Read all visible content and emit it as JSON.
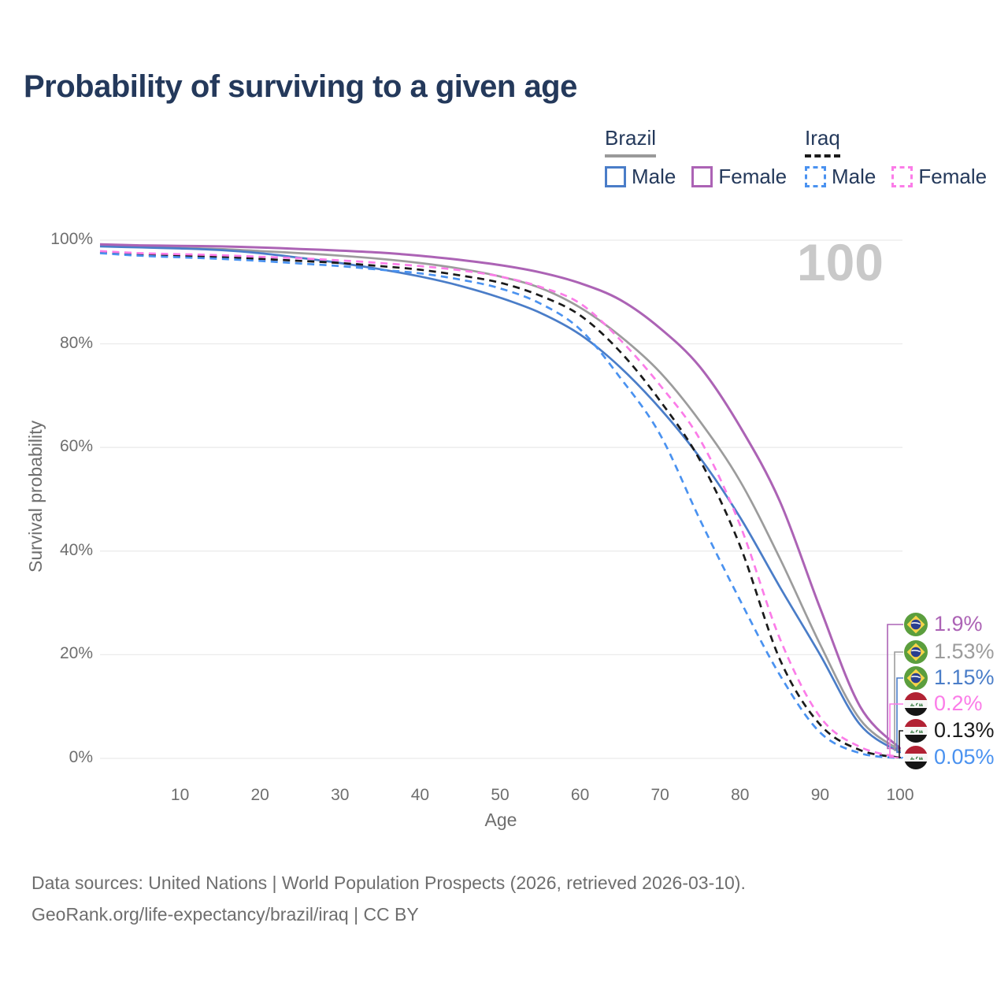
{
  "title": "Probability of surviving to a given age",
  "watermark": "100",
  "legend": {
    "groups": [
      {
        "country": "Brazil",
        "line_style": "solid",
        "underline_color": "#9a9a9a",
        "items": [
          {
            "label": "Male",
            "color": "#4a7dc8"
          },
          {
            "label": "Female",
            "color": "#ac63b5"
          }
        ]
      },
      {
        "country": "Iraq",
        "line_style": "dashed",
        "underline_color": "#1a1a1a",
        "items": [
          {
            "label": "Male",
            "color": "#4a92f0"
          },
          {
            "label": "Female",
            "color": "#fb7ce8"
          }
        ]
      }
    ]
  },
  "chart_data": {
    "type": "line",
    "title": "Probability of surviving to a given age",
    "xlabel": "Age",
    "ylabel": "Survival probability",
    "xlim": [
      0,
      100
    ],
    "ylim": [
      0,
      100
    ],
    "grid": "horizontal",
    "x_ticks": [
      10,
      20,
      30,
      40,
      50,
      60,
      70,
      80,
      90,
      100
    ],
    "y_ticks": [
      "0%",
      "20%",
      "40%",
      "60%",
      "80%",
      "100%"
    ],
    "x": [
      0,
      5,
      10,
      15,
      20,
      25,
      30,
      35,
      40,
      45,
      50,
      55,
      60,
      65,
      70,
      75,
      80,
      85,
      90,
      95,
      100
    ],
    "series": [
      {
        "name": "Brazil Female",
        "country": "Brazil",
        "sex": "Female",
        "color": "#ac63b5",
        "line": "solid",
        "flag": "brazil",
        "end_label": "1.9%",
        "values": [
          99.2,
          99.0,
          98.9,
          98.8,
          98.6,
          98.3,
          98.0,
          97.6,
          97.0,
          96.2,
          95.2,
          93.8,
          91.7,
          88.5,
          83.0,
          75.5,
          64.0,
          49.5,
          29.0,
          10.0,
          1.9
        ]
      },
      {
        "name": "Brazil Both sexes",
        "country": "Brazil",
        "sex": "Both",
        "color": "#9c9c9c",
        "line": "solid",
        "flag": "brazil",
        "end_label": "1.53%",
        "values": [
          98.9,
          98.7,
          98.5,
          98.3,
          97.9,
          97.5,
          97.0,
          96.4,
          95.6,
          94.5,
          93.0,
          90.8,
          87.0,
          81.5,
          74.5,
          65.0,
          53.5,
          38.5,
          22.0,
          7.5,
          1.53
        ]
      },
      {
        "name": "Brazil Male",
        "country": "Brazil",
        "sex": "Male",
        "color": "#4a7dc8",
        "line": "solid",
        "flag": "brazil",
        "end_label": "1.15%",
        "values": [
          98.8,
          98.6,
          98.4,
          98.1,
          97.5,
          96.6,
          95.6,
          94.4,
          93.0,
          91.2,
          88.9,
          86.0,
          81.8,
          75.5,
          67.5,
          58.0,
          46.5,
          33.0,
          20.0,
          6.5,
          1.15
        ]
      },
      {
        "name": "Iraq Female",
        "country": "Iraq",
        "sex": "Female",
        "color": "#fb7ce8",
        "line": "dashed",
        "flag": "iraq",
        "end_label": "0.2%",
        "values": [
          97.9,
          97.5,
          97.3,
          97.1,
          96.8,
          96.5,
          96.1,
          95.6,
          95.0,
          94.2,
          93.0,
          91.0,
          87.8,
          80.8,
          72.0,
          61.5,
          45.0,
          23.0,
          8.0,
          2.2,
          0.2
        ]
      },
      {
        "name": "Iraq Both sexes",
        "country": "Iraq",
        "sex": "Both",
        "color": "#1a1a1a",
        "line": "dashed",
        "flag": "iraq",
        "end_label": "0.13%",
        "values": [
          97.7,
          97.2,
          97.0,
          96.8,
          96.4,
          96.0,
          95.6,
          95.0,
          94.3,
          93.2,
          91.8,
          89.3,
          85.5,
          78.5,
          69.0,
          57.5,
          41.0,
          19.0,
          6.5,
          1.6,
          0.13
        ]
      },
      {
        "name": "Iraq Male",
        "country": "Iraq",
        "sex": "Male",
        "color": "#4a92f0",
        "line": "dashed",
        "flag": "iraq",
        "end_label": "0.05%",
        "values": [
          97.5,
          97.0,
          96.7,
          96.4,
          96.0,
          95.5,
          95.0,
          94.3,
          93.6,
          92.4,
          90.7,
          87.8,
          82.8,
          73.5,
          62.5,
          46.0,
          30.5,
          16.0,
          5.0,
          1.0,
          0.05
        ]
      }
    ]
  },
  "source": {
    "line1": "Data sources: United Nations | World Population Prospects (2026, retrieved 2026-03-10).",
    "line2": "GeoRank.org/life-expectancy/brazil/iraq | CC BY"
  }
}
